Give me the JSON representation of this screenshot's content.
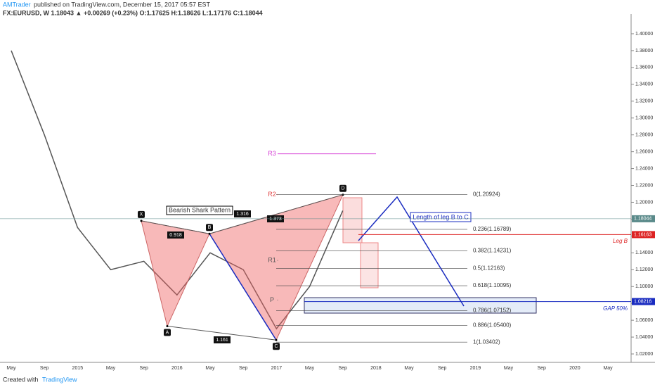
{
  "header": {
    "author": "AMTrader",
    "published": "published on TradingView.com, December 15, 2017 05:57 EST",
    "symbol": "FX:EURUSD, W 1.18043 ▲ +0.00269 (+0.23%) O:1.17625 H:1.18626 L:1.17176 C:1.18044"
  },
  "chart_data": {
    "type": "line",
    "color": "#555555",
    "categories": [
      "May",
      "Sep",
      "2015",
      "May",
      "Sep",
      "2016",
      "May",
      "Sep",
      "2017",
      "May",
      "Sep",
      "2018",
      "May",
      "Sep",
      "2019",
      "May",
      "Sep",
      "2020",
      "May"
    ],
    "values": [
      1.38,
      1.28,
      1.17,
      1.12,
      1.13,
      1.09,
      1.14,
      1.12,
      1.05,
      1.1,
      1.19,
      null,
      null,
      null,
      null,
      null,
      null,
      null,
      null
    ],
    "ylim": [
      1.01,
      1.415
    ],
    "yticks": [
      {
        "value": 1.4,
        "label": "1.40000"
      },
      {
        "value": 1.38,
        "label": "1.38000"
      },
      {
        "value": 1.36,
        "label": "1.36000"
      },
      {
        "value": 1.34,
        "label": "1.34000"
      },
      {
        "value": 1.32,
        "label": "1.32000"
      },
      {
        "value": 1.3,
        "label": "1.30000"
      },
      {
        "value": 1.28,
        "label": "1.28000"
      },
      {
        "value": 1.26,
        "label": "1.26000"
      },
      {
        "value": 1.24,
        "label": "1.24000"
      },
      {
        "value": 1.22,
        "label": "1.22000"
      },
      {
        "value": 1.2,
        "label": "1.20000"
      },
      {
        "value": 1.18,
        "label": "1.18000"
      },
      {
        "value": 1.16,
        "label": "1.16000"
      },
      {
        "value": 1.14,
        "label": "1.14000"
      },
      {
        "value": 1.12,
        "label": "1.12000"
      },
      {
        "value": 1.1,
        "label": "1.10000"
      },
      {
        "value": 1.08,
        "label": "1.08000"
      },
      {
        "value": 1.06,
        "label": "1.06000"
      },
      {
        "value": 1.04,
        "label": "1.04000"
      },
      {
        "value": 1.02,
        "label": "1.02000"
      }
    ],
    "fib_levels": [
      {
        "value": 1.20924,
        "label": "0(1.20924)"
      },
      {
        "value": 1.16789,
        "label": "0.236(1.16789)"
      },
      {
        "value": 1.14231,
        "label": "0.382(1.14231)"
      },
      {
        "value": 1.12163,
        "label": "0.5(1.12163)"
      },
      {
        "value": 1.10095,
        "label": "0.618(1.10095)"
      },
      {
        "value": 1.07152,
        "label": "0.786(1.07152)"
      },
      {
        "value": 1.054,
        "label": "0.886(1.05400)"
      },
      {
        "value": 1.03402,
        "label": "1(1.03402)"
      }
    ],
    "pattern_points": [
      {
        "name": "X",
        "value": 1.178
      },
      {
        "name": "A",
        "value": 1.053
      },
      {
        "name": "B",
        "value": 1.1626
      },
      {
        "name": "C",
        "value": 1.0365
      },
      {
        "name": "D",
        "value": 1.209
      }
    ],
    "ratios": [
      "0.918",
      "1.316",
      "1.373",
      "1.161"
    ],
    "pivots": [
      {
        "name": "R3",
        "value": 1.2575
      },
      {
        "name": "R2",
        "value": 1.209
      },
      {
        "name": "R1",
        "value": 1.131
      },
      {
        "name": "P",
        "value": 1.084
      }
    ],
    "annotations": {
      "pattern": "Bearish Shark Pattern",
      "leg": "Length of leg B to C",
      "leg_b": "Leg B",
      "gap": "GAP 50%"
    },
    "price_tags": [
      {
        "value": 1.18044,
        "label": "1.18044"
      },
      {
        "value": 1.16163,
        "label": "1.16163"
      },
      {
        "value": 1.08216,
        "label": "1.08216"
      }
    ]
  },
  "footer": {
    "created": "Created with",
    "brand": "TradingView"
  }
}
